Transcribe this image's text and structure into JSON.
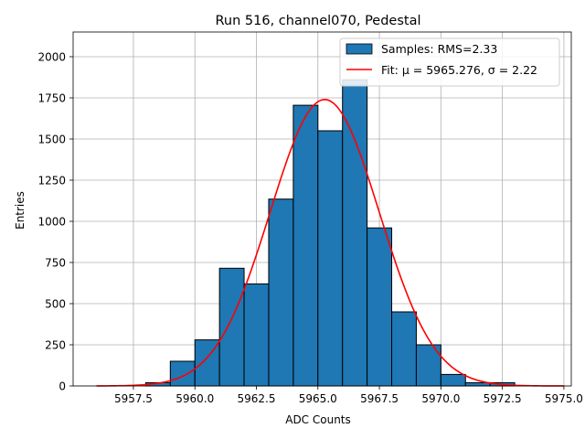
{
  "chart_data": {
    "type": "bar",
    "title": "Run 516, channel070, Pedestal",
    "xlabel": "ADC Counts",
    "ylabel": "Entries",
    "xlim": [
      5955.05,
      5975.3
    ],
    "ylim": [
      0,
      2150
    ],
    "xticks": [
      5957.5,
      5960.0,
      5962.5,
      5965.0,
      5967.5,
      5970.0,
      5972.5,
      5975.0
    ],
    "xtick_labels": [
      "5957.5",
      "5960.0",
      "5962.5",
      "5965.0",
      "5967.5",
      "5970.0",
      "5972.5",
      "5975.0"
    ],
    "yticks": [
      0,
      250,
      500,
      750,
      1000,
      1250,
      1500,
      1750,
      2000
    ],
    "ytick_labels": [
      "0",
      "250",
      "500",
      "750",
      "1000",
      "1250",
      "1500",
      "1750",
      "2000"
    ],
    "grid": true,
    "legend_position": "top-right",
    "series": [
      {
        "name": "Samples: RMS=2.33",
        "kind": "histogram",
        "color": "#1f77b4",
        "edgecolor": "#000000",
        "bins": [
          {
            "x0": 5958,
            "x1": 5959,
            "count": 20
          },
          {
            "x0": 5959,
            "x1": 5960,
            "count": 150
          },
          {
            "x0": 5960,
            "x1": 5961,
            "count": 280
          },
          {
            "x0": 5961,
            "x1": 5962,
            "count": 715
          },
          {
            "x0": 5962,
            "x1": 5963,
            "count": 620
          },
          {
            "x0": 5963,
            "x1": 5964,
            "count": 1135
          },
          {
            "x0": 5964,
            "x1": 5965,
            "count": 1705
          },
          {
            "x0": 5965,
            "x1": 5966,
            "count": 1550
          },
          {
            "x0": 5966,
            "x1": 5967,
            "count": 1860
          },
          {
            "x0": 5967,
            "x1": 5968,
            "count": 960
          },
          {
            "x0": 5968,
            "x1": 5969,
            "count": 450
          },
          {
            "x0": 5969,
            "x1": 5970,
            "count": 250
          },
          {
            "x0": 5970,
            "x1": 5971,
            "count": 70
          },
          {
            "x0": 5971,
            "x1": 5972,
            "count": 20
          },
          {
            "x0": 5972,
            "x1": 5973,
            "count": 20
          }
        ]
      },
      {
        "name": "Fit: μ = 5965.276, σ = 2.22",
        "kind": "gaussian-fit",
        "color": "#ff0000",
        "mu": 5965.276,
        "sigma": 2.22,
        "amplitude": 1740,
        "x_range": [
          5956,
          5975
        ]
      }
    ]
  }
}
